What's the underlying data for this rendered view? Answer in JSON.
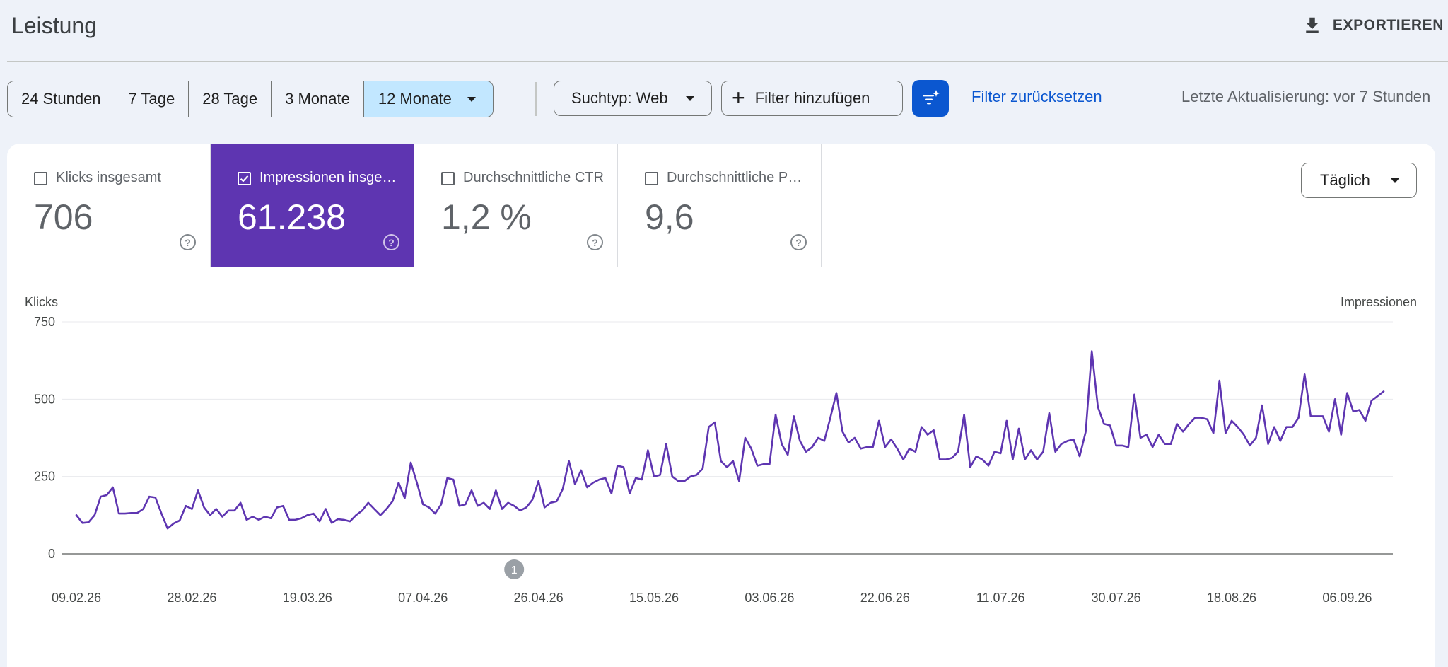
{
  "header": {
    "title": "Leistung",
    "export_label": "EXPORTIEREN"
  },
  "toolbar": {
    "ranges": [
      {
        "label": "24 Stunden",
        "selected": false
      },
      {
        "label": "7 Tage",
        "selected": false
      },
      {
        "label": "28 Tage",
        "selected": false
      },
      {
        "label": "3 Monate",
        "selected": false
      },
      {
        "label": "12 Monate",
        "selected": true
      }
    ],
    "search_type": "Suchtyp: Web",
    "add_filter": "Filter hinzufügen",
    "reset_filter": "Filter zurücksetzen",
    "last_update": "Letzte Aktualisierung: vor 7 Stunden"
  },
  "metrics": [
    {
      "label": "Klicks insgesamt",
      "value": "706",
      "active": false
    },
    {
      "label": "Impressionen insgesamt",
      "value": "61.238",
      "active": true
    },
    {
      "label": "Durchschnittliche CTR",
      "value": "1,2 %",
      "active": false
    },
    {
      "label": "Durchschnittliche Position",
      "value": "9,6",
      "active": false
    }
  ],
  "granularity": "Täglich",
  "colors": {
    "accent_purple": "#5e35b1",
    "selected_range_bg": "#c2e7ff",
    "link_blue": "#0b57d0"
  },
  "icons": {
    "export": "download-icon",
    "add_filter": "plus-icon",
    "ai_filter": "sparkle-filter-icon",
    "help": "help-circle-icon",
    "dropdown": "caret-down-icon"
  },
  "chart_data": {
    "type": "line",
    "ylabel_left": "Klicks",
    "ylabel_right": "Impressionen",
    "ylim": [
      0,
      750
    ],
    "yticks": [
      0,
      250,
      500,
      750
    ],
    "x_tick_labels": [
      "09.02.26",
      "28.02.26",
      "19.03.26",
      "07.04.26",
      "26.04.26",
      "15.05.26",
      "03.06.26",
      "22.06.26",
      "11.07.26",
      "30.07.26",
      "18.08.26",
      "06.09.26"
    ],
    "x_start": "09.02.26",
    "annotation": {
      "label": "1",
      "date": "22.04.26"
    },
    "grid": true,
    "series": [
      {
        "name": "Impressionen",
        "color": "#5e35b1",
        "values": [
          125,
          100,
          102,
          125,
          185,
          190,
          215,
          130,
          130,
          132,
          132,
          145,
          185,
          182,
          130,
          82,
          98,
          108,
          155,
          145,
          205,
          150,
          125,
          145,
          120,
          140,
          140,
          165,
          110,
          120,
          110,
          120,
          115,
          150,
          155,
          110,
          110,
          115,
          125,
          130,
          105,
          145,
          100,
          112,
          110,
          105,
          125,
          140,
          165,
          145,
          125,
          145,
          170,
          230,
          180,
          295,
          230,
          160,
          150,
          130,
          160,
          245,
          240,
          155,
          160,
          205,
          155,
          165,
          145,
          205,
          145,
          165,
          155,
          140,
          150,
          175,
          235,
          150,
          165,
          170,
          210,
          300,
          225,
          270,
          215,
          230,
          240,
          245,
          195,
          285,
          280,
          195,
          245,
          240,
          335,
          250,
          255,
          355,
          250,
          235,
          235,
          250,
          255,
          275,
          410,
          425,
          300,
          280,
          300,
          235,
          375,
          340,
          285,
          290,
          290,
          450,
          355,
          320,
          445,
          365,
          330,
          345,
          375,
          365,
          440,
          520,
          395,
          360,
          375,
          340,
          345,
          345,
          430,
          345,
          370,
          340,
          305,
          340,
          330,
          410,
          385,
          400,
          305,
          305,
          310,
          330,
          450,
          280,
          315,
          305,
          285,
          330,
          325,
          430,
          305,
          405,
          305,
          335,
          305,
          330,
          455,
          330,
          355,
          365,
          370,
          315,
          395,
          655,
          475,
          420,
          415,
          350,
          350,
          345,
          515,
          375,
          385,
          345,
          385,
          355,
          355,
          420,
          395,
          420,
          440,
          440,
          435,
          390,
          560,
          390,
          430,
          410,
          385,
          350,
          375,
          480,
          355,
          410,
          365,
          410,
          410,
          440,
          580,
          445,
          445,
          445,
          395,
          500,
          385,
          520,
          460,
          465,
          430,
          495,
          510,
          525
        ]
      }
    ]
  }
}
